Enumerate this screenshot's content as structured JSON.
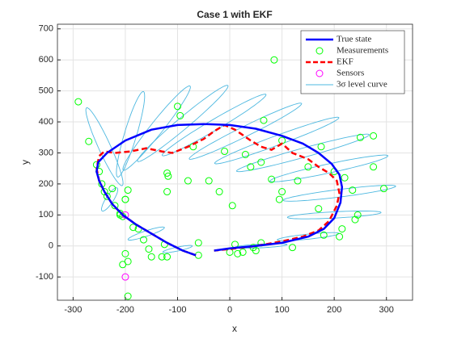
{
  "chart_data": {
    "type": "line",
    "title": "Case 1 with EKF",
    "xlabel": "x",
    "ylabel": "y",
    "xlim": [
      -330,
      350
    ],
    "ylim": [
      -175,
      715
    ],
    "xticks": [
      -300,
      -200,
      -100,
      0,
      100,
      200,
      300
    ],
    "yticks": [
      -100,
      0,
      100,
      200,
      300,
      400,
      500,
      600,
      700
    ],
    "grid": true,
    "legend": "northeast",
    "series": [
      {
        "name": "True state",
        "color": "#0000ff",
        "mark": "line",
        "x": [
          -30,
          0,
          50,
          100,
          150,
          180,
          200,
          212,
          215,
          210,
          195,
          170,
          140,
          100,
          50,
          0,
          -50,
          -100,
          -150,
          -200,
          -235,
          -252,
          -255,
          -250,
          -240,
          -225,
          -205,
          -180,
          -150,
          -120,
          -90,
          -65
        ],
        "values": [
          -15,
          -8,
          0,
          10,
          30,
          55,
          90,
          140,
          190,
          230,
          265,
          300,
          330,
          355,
          378,
          390,
          393,
          390,
          375,
          340,
          300,
          270,
          240,
          210,
          175,
          135,
          100,
          70,
          40,
          10,
          -15,
          -30
        ]
      },
      {
        "name": "Measurements",
        "color": "#00ff00",
        "mark": "circle",
        "x": [
          -290,
          -270,
          -255,
          -250,
          -245,
          -240,
          -235,
          -225,
          -220,
          -210,
          -205,
          -200,
          -195,
          -185,
          -175,
          -165,
          -155,
          -150,
          -130,
          -120,
          -125,
          -120,
          -118,
          -120,
          -100,
          -95,
          -80,
          -60,
          -60,
          -70,
          -40,
          -20,
          -10,
          0,
          5,
          10,
          15,
          25,
          30,
          40,
          45,
          50,
          60,
          60,
          65,
          80,
          85,
          95,
          100,
          100,
          120,
          130,
          150,
          170,
          175,
          180,
          200,
          210,
          215,
          220,
          235,
          240,
          245,
          250,
          275,
          275,
          295,
          -200,
          -195,
          -205,
          -195,
          -200,
          -210
        ],
        "values": [
          465,
          337,
          262,
          240,
          200,
          175,
          160,
          185,
          130,
          100,
          95,
          150,
          180,
          60,
          55,
          20,
          -10,
          -35,
          -35,
          -35,
          5,
          235,
          225,
          175,
          450,
          420,
          210,
          10,
          -30,
          320,
          210,
          175,
          305,
          -20,
          130,
          5,
          -25,
          -20,
          295,
          255,
          -5,
          -15,
          10,
          270,
          405,
          215,
          600,
          150,
          175,
          340,
          -5,
          210,
          255,
          120,
          320,
          35,
          240,
          30,
          55,
          220,
          180,
          85,
          100,
          350,
          355,
          255,
          185,
          -25,
          -50,
          -60,
          -162,
          150,
          105
        ]
      },
      {
        "name": "EKF",
        "color": "#ff0000",
        "mark": "dashed",
        "x": [
          -65,
          -90,
          -120,
          -150,
          -180,
          -205,
          -225,
          -240,
          -250,
          -255,
          -250,
          -240,
          -220,
          -190,
          -160,
          -130,
          -110,
          -80,
          -50,
          -30,
          -10,
          10,
          40,
          60,
          80,
          100,
          120,
          135,
          150,
          170,
          190,
          205,
          210,
          205,
          190,
          170,
          140,
          100,
          50,
          0,
          -30
        ],
        "values": [
          -30,
          -15,
          10,
          40,
          70,
          100,
          135,
          175,
          210,
          250,
          290,
          305,
          300,
          305,
          315,
          305,
          300,
          320,
          345,
          370,
          390,
          375,
          340,
          320,
          310,
          330,
          300,
          290,
          280,
          255,
          235,
          210,
          170,
          130,
          80,
          50,
          30,
          15,
          0,
          -10,
          -15
        ]
      },
      {
        "name": "Sensors",
        "color": "#ff00ff",
        "mark": "circle",
        "x": [
          -200,
          -200
        ],
        "values": [
          -100,
          100
        ]
      },
      {
        "name": "3σ level curve",
        "color": "#4db8e0",
        "mark": "ellipse",
        "x": [
          -240,
          -190,
          -140,
          -90,
          -30,
          30,
          90,
          140,
          190,
          210,
          200,
          150,
          60,
          -230,
          -160,
          -100
        ],
        "values": [
          320,
          360,
          380,
          395,
          390,
          370,
          340,
          300,
          250,
          170,
          100,
          30,
          0,
          150,
          40,
          -10
        ],
        "semi_major": [
          130,
          140,
          150,
          150,
          140,
          140,
          140,
          140,
          120,
          110,
          90,
          60,
          50,
          40,
          40,
          30
        ],
        "semi_minor": [
          12,
          12,
          14,
          14,
          14,
          14,
          14,
          14,
          14,
          12,
          10,
          8,
          6,
          8,
          8,
          6
        ],
        "angle": [
          105,
          80,
          65,
          55,
          45,
          40,
          32,
          25,
          20,
          12,
          5,
          10,
          5,
          70,
          30,
          20
        ]
      }
    ]
  }
}
